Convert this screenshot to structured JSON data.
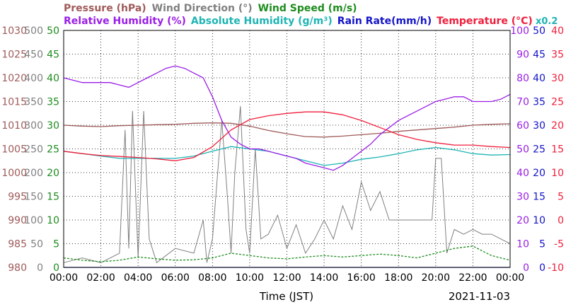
{
  "chart_data": {
    "type": "line",
    "legend": {
      "row1": [
        {
          "text": "Pressure (hPa)",
          "color": "#a05a5a"
        },
        {
          "text": "Wind Direction (°)",
          "color": "#808080"
        },
        {
          "text": "Wind Speed (m/s)",
          "color": "#1e8c1e"
        }
      ],
      "row2": [
        {
          "text": "Relative Humidity (%)",
          "color": "#9a1ee6"
        },
        {
          "text": "Absolute Humidity (g/m³)",
          "color": "#1eb4b4"
        },
        {
          "text": "Rain Rate(mm/h)",
          "color": "#1414c8"
        },
        {
          "text": "Temperature (°C)",
          "color": "#f01e3c"
        }
      ],
      "scale_note": "x0.2"
    },
    "xlabel": "Time (JST)",
    "date": "2021-11-03",
    "x_range": [
      "00:00",
      "24:00"
    ],
    "x_ticks": [
      "00:00",
      "02:00",
      "04:00",
      "06:00",
      "08:00",
      "10:00",
      "12:00",
      "14:00",
      "16:00",
      "18:00",
      "20:00",
      "22:00",
      "00:00"
    ],
    "grid": true,
    "axes": {
      "pressure": {
        "ticks": [
          "1030",
          "1025",
          "1020",
          "1015",
          "1010",
          "1005",
          "1000",
          "995",
          "990",
          "985",
          "980"
        ],
        "range": [
          980,
          1030
        ],
        "color": "#a05a5a"
      },
      "wind_direction": {
        "ticks": [
          "350",
          "400",
          "450"
        ],
        "ticks_full": [
          "500",
          "450",
          "400",
          "350",
          "300",
          "250",
          "200",
          "150",
          "100",
          "50",
          "0"
        ],
        "range": [
          0,
          500
        ],
        "color": "#808080"
      },
      "wind_speed": {
        "ticks_full": [
          "50",
          "45",
          "40",
          "35",
          "30",
          "25",
          "20",
          "15",
          "10",
          "5",
          "0"
        ],
        "range": [
          0,
          50
        ],
        "color": "#1e8c1e"
      },
      "relative_humidity": {
        "ticks_full": [
          "100",
          "90",
          "80",
          "70",
          "60",
          "50",
          "40",
          "30",
          "20",
          "10",
          "0"
        ],
        "range": [
          0,
          100
        ],
        "color": "#9a1ee6"
      },
      "rain_rate": {
        "ticks_full": [
          "50",
          "45",
          "40",
          "35",
          "30",
          "25",
          "20",
          "15",
          "10",
          "5",
          "0"
        ],
        "range": [
          0,
          50
        ],
        "color": "#1414c8"
      },
      "temperature": {
        "ticks_full": [
          "40",
          "35",
          "30",
          "25",
          "20",
          "15",
          "10",
          "5",
          "0",
          "-5",
          "-10"
        ],
        "range": [
          -10,
          40
        ],
        "color": "#f01e3c"
      }
    },
    "series": [
      {
        "name": "Pressure (hPa)",
        "axis": "pressure",
        "color": "#a05a5a",
        "x": [
          0,
          1,
          2,
          3,
          4,
          5,
          6,
          7,
          8,
          9,
          10,
          11,
          12,
          13,
          14,
          15,
          16,
          17,
          18,
          19,
          20,
          21,
          22,
          23,
          24
        ],
        "y": [
          1010.0,
          1009.8,
          1009.7,
          1009.9,
          1010.0,
          1010.1,
          1010.2,
          1010.4,
          1010.5,
          1010.4,
          1009.8,
          1008.9,
          1008.2,
          1007.6,
          1007.5,
          1007.7,
          1008.0,
          1008.3,
          1008.7,
          1009.0,
          1009.3,
          1009.6,
          1010.0,
          1010.2,
          1010.3
        ]
      },
      {
        "name": "Relative Humidity (%)",
        "axis": "relative_humidity",
        "color": "#9a1ee6",
        "x": [
          0,
          0.5,
          1,
          1.5,
          2,
          2.5,
          3,
          3.5,
          4,
          4.5,
          5,
          5.5,
          6,
          6.5,
          7,
          7.5,
          8,
          8.5,
          9,
          9.5,
          10,
          10.5,
          11,
          11.5,
          12,
          12.5,
          13,
          13.5,
          14,
          14.5,
          15,
          15.5,
          16,
          16.5,
          17,
          17.5,
          18,
          18.5,
          19,
          19.5,
          20,
          20.5,
          21,
          21.5,
          22,
          22.5,
          23,
          23.5,
          24
        ],
        "y": [
          80,
          79,
          78,
          78,
          78,
          78,
          77,
          76,
          78,
          80,
          82,
          84,
          85,
          84,
          82,
          80,
          72,
          62,
          55,
          52,
          50,
          50,
          49,
          48,
          47,
          46,
          44,
          43,
          42,
          41,
          43,
          46,
          49,
          52,
          56,
          59,
          62,
          64,
          66,
          68,
          70,
          71,
          72,
          72,
          70,
          70,
          70,
          71,
          73
        ]
      },
      {
        "name": "Absolute Humidity (g/m³)",
        "axis": "wind_speed",
        "color": "#1eb4b4",
        "x": [
          0,
          1,
          2,
          3,
          4,
          5,
          6,
          7,
          8,
          9,
          10,
          11,
          12,
          13,
          14,
          15,
          16,
          17,
          18,
          19,
          20,
          21,
          22,
          23,
          24
        ],
        "y": [
          24.5,
          24.0,
          23.5,
          23.0,
          23.0,
          23.0,
          23.0,
          23.5,
          24.5,
          25.5,
          25.0,
          24.5,
          23.5,
          22.5,
          21.5,
          22.0,
          22.8,
          23.3,
          24.0,
          24.8,
          25.3,
          24.8,
          24.0,
          23.7,
          23.8
        ]
      },
      {
        "name": "Temperature (°C)",
        "axis": "temperature",
        "color": "#f01e3c",
        "x": [
          0,
          1,
          2,
          3,
          4,
          5,
          6,
          7,
          8,
          9,
          10,
          11,
          12,
          13,
          14,
          15,
          16,
          17,
          18,
          19,
          20,
          21,
          22,
          23,
          24
        ],
        "y": [
          14.5,
          14.0,
          13.6,
          13.4,
          13.2,
          12.9,
          12.5,
          13.2,
          15.5,
          19.0,
          21.2,
          22.0,
          22.5,
          22.8,
          22.8,
          22.2,
          21.0,
          19.5,
          18.0,
          17.0,
          16.3,
          15.8,
          15.8,
          15.5,
          15.3
        ]
      },
      {
        "name": "Wind Direction (°)",
        "axis": "wind_direction",
        "color": "#808080",
        "x": [
          0,
          1,
          2,
          3,
          3.3,
          3.5,
          3.7,
          4,
          4.3,
          4.6,
          5,
          6,
          7,
          7.5,
          7.7,
          8,
          8.5,
          8.8,
          9,
          9.2,
          9.5,
          9.8,
          10,
          10.3,
          10.6,
          11,
          11.5,
          12,
          12.5,
          13,
          13.5,
          14,
          14.5,
          15,
          15.5,
          16,
          16.5,
          17,
          17.5,
          18,
          18.5,
          19,
          19.5,
          19.8,
          20,
          20.3,
          20.6,
          21,
          21.5,
          22,
          22.5,
          23,
          23.5,
          24
        ],
        "y": [
          10,
          20,
          10,
          30,
          290,
          40,
          330,
          20,
          330,
          60,
          10,
          40,
          30,
          100,
          10,
          60,
          310,
          150,
          30,
          200,
          340,
          80,
          30,
          250,
          60,
          70,
          110,
          40,
          90,
          30,
          60,
          100,
          60,
          130,
          80,
          180,
          120,
          160,
          100,
          100,
          100,
          100,
          100,
          100,
          230,
          230,
          30,
          80,
          70,
          80,
          70,
          70,
          60,
          50
        ]
      },
      {
        "name": "Wind Speed (m/s)",
        "axis": "wind_speed",
        "color": "#1e8c1e",
        "x": [
          0,
          1,
          2,
          3,
          4,
          5,
          6,
          7,
          8,
          9,
          10,
          11,
          12,
          13,
          14,
          15,
          16,
          17,
          18,
          19,
          20,
          21,
          22,
          23,
          24
        ],
        "y": [
          2.0,
          1.5,
          1.2,
          1.5,
          2.2,
          1.8,
          1.5,
          1.6,
          2.0,
          3.0,
          2.5,
          2.0,
          1.8,
          2.2,
          2.5,
          2.2,
          2.5,
          2.8,
          2.5,
          2.0,
          3.0,
          4.0,
          4.5,
          2.5,
          1.5
        ]
      },
      {
        "name": "Rain Rate(mm/h)",
        "axis": "rain_rate",
        "color": "#1414c8",
        "x": [
          0,
          24
        ],
        "y": [
          0,
          0
        ]
      }
    ]
  }
}
